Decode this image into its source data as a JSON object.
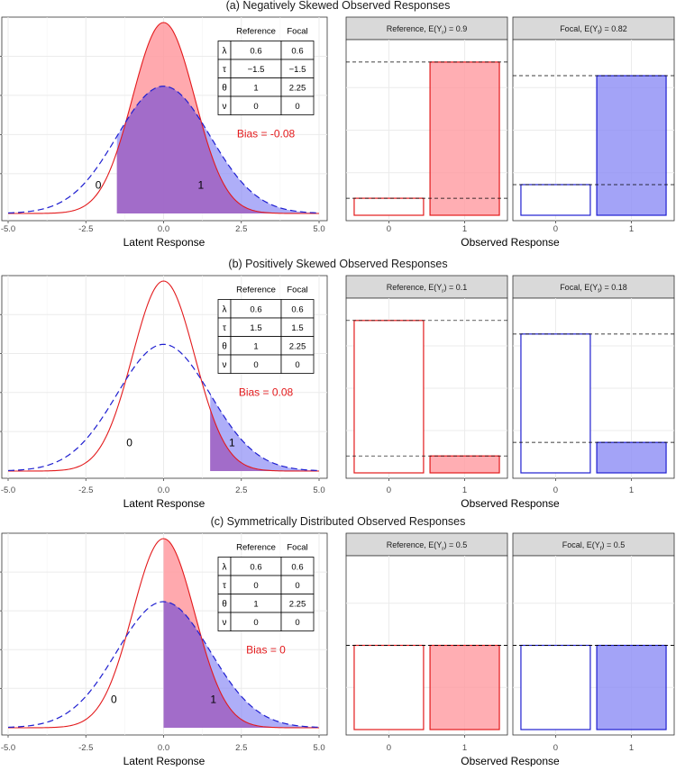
{
  "figure": {
    "ref_color": "#e31a1c",
    "foc_color": "#1f1fd0",
    "ref_fill": "#ff9aa0",
    "foc_fill": "#8c8cf5",
    "overlap_fill": "#a167c6",
    "panel_strip_color": "#d9d9d9",
    "table_headers": [
      "Reference",
      "Focal"
    ],
    "param_symbols": [
      "λ",
      "τ",
      "θ",
      "ν"
    ],
    "x_label_left": "Latent Response",
    "x_label_right": "Observed Response",
    "x_ticks": [
      "-5.0",
      "-2.5",
      "0.0",
      "2.5",
      "5.0"
    ],
    "bar_categories": [
      "0",
      "1"
    ],
    "category_labels": [
      "0",
      "1"
    ]
  },
  "chart_data": [
    {
      "type": "area",
      "title": "(a) Negatively Skewed Observed Responses",
      "xlim": [
        -5,
        5
      ],
      "threshold": -1.5,
      "bias_text": "Bias = -0.08",
      "params": [
        {
          "symbol": "λ",
          "reference": "0.6",
          "focal": "0.6"
        },
        {
          "symbol": "τ",
          "reference": "−1.5",
          "focal": "−1.5"
        },
        {
          "symbol": "θ",
          "reference": "1",
          "focal": "2.25"
        },
        {
          "symbol": "ν",
          "reference": "0",
          "focal": "0"
        }
      ],
      "reference_sd": 1,
      "focal_sd": 1.5,
      "label_positions_x": [
        -2.1,
        1.2
      ],
      "panels": [
        {
          "group": "Reference",
          "strip": "E(Y",
          "strip_sub": "r",
          "strip_value": ") = 0.9",
          "expected": 0.9,
          "values": [
            0.1,
            0.9
          ]
        },
        {
          "group": "Focal",
          "strip": "E(Y",
          "strip_sub": "f",
          "strip_value": ") = 0.82",
          "expected": 0.82,
          "values": [
            0.18,
            0.82
          ]
        }
      ]
    },
    {
      "type": "area",
      "title": "(b) Positively Skewed Observed Responses",
      "xlim": [
        -5,
        5
      ],
      "threshold": 1.5,
      "bias_text": "Bias = 0.08",
      "params": [
        {
          "symbol": "λ",
          "reference": "0.6",
          "focal": "0.6"
        },
        {
          "symbol": "τ",
          "reference": "1.5",
          "focal": "1.5"
        },
        {
          "symbol": "θ",
          "reference": "1",
          "focal": "2.25"
        },
        {
          "symbol": "ν",
          "reference": "0",
          "focal": "0"
        }
      ],
      "reference_sd": 1,
      "focal_sd": 1.5,
      "label_positions_x": [
        -1.1,
        2.2
      ],
      "panels": [
        {
          "group": "Reference",
          "strip": "E(Y",
          "strip_sub": "r",
          "strip_value": ") = 0.1",
          "expected": 0.1,
          "values": [
            0.9,
            0.1
          ]
        },
        {
          "group": "Focal",
          "strip": "E(Y",
          "strip_sub": "f",
          "strip_value": ") = 0.18",
          "expected": 0.18,
          "values": [
            0.82,
            0.18
          ]
        }
      ]
    },
    {
      "type": "area",
      "title": "(c) Symmetrically Distributed Observed Responses",
      "xlim": [
        -5,
        5
      ],
      "threshold": 0,
      "bias_text": "Bias = 0",
      "params": [
        {
          "symbol": "λ",
          "reference": "0.6",
          "focal": "0.6"
        },
        {
          "symbol": "τ",
          "reference": "0",
          "focal": "0"
        },
        {
          "symbol": "θ",
          "reference": "1",
          "focal": "2.25"
        },
        {
          "symbol": "ν",
          "reference": "0",
          "focal": "0"
        }
      ],
      "reference_sd": 1,
      "focal_sd": 1.5,
      "label_positions_x": [
        -1.6,
        1.6
      ],
      "panels": [
        {
          "group": "Reference",
          "strip": "E(Y",
          "strip_sub": "r",
          "strip_value": ") = 0.5",
          "expected": 0.5,
          "values": [
            0.5,
            0.5
          ]
        },
        {
          "group": "Focal",
          "strip": "E(Y",
          "strip_sub": "f",
          "strip_value": ") = 0.5",
          "expected": 0.5,
          "values": [
            0.5,
            0.5
          ]
        }
      ]
    }
  ]
}
